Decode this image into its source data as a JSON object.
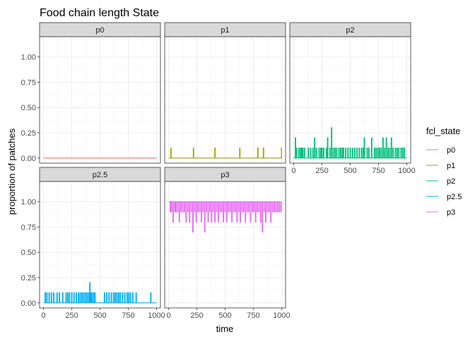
{
  "chart_data": {
    "type": "line",
    "title": "Food chain length State",
    "xlabel": "time",
    "ylabel": "proportion of patches",
    "xlim": [
      -35,
      1035
    ],
    "ylim": [
      -0.05,
      1.2
    ],
    "xticks": [
      0,
      250,
      500,
      750,
      1000
    ],
    "xtick_labels": [
      "0",
      "250",
      "500",
      "750",
      "1000"
    ],
    "yticks": [
      0,
      0.25,
      0.5,
      0.75,
      1.0
    ],
    "ytick_labels": [
      "0.00",
      "0.25",
      "0.50",
      "0.75",
      "1.00"
    ],
    "grid": true,
    "legend": {
      "title": "fcl_state",
      "position": "right",
      "entries": [
        "p0",
        "p1",
        "p2",
        "p2.5",
        "p3"
      ]
    },
    "panels": [
      {
        "name": "p0",
        "color": "#F8766D",
        "baseline": 0,
        "spikes": []
      },
      {
        "name": "p1",
        "color": "#A3A500",
        "baseline": 0,
        "spikes": [
          [
            20,
            0.1
          ],
          [
            220,
            0.1
          ],
          [
            410,
            0.1
          ],
          [
            630,
            0.1
          ],
          [
            790,
            0.1
          ],
          [
            840,
            0.1
          ],
          [
            1000,
            0.1
          ]
        ]
      },
      {
        "name": "p2",
        "color": "#00BF7D",
        "baseline": 0,
        "spikes": [
          [
            15,
            0.2
          ],
          [
            25,
            0.1
          ],
          [
            45,
            0.1
          ],
          [
            60,
            0.1
          ],
          [
            70,
            0.1
          ],
          [
            80,
            0.1
          ],
          [
            95,
            0.1
          ],
          [
            130,
            0.1
          ],
          [
            150,
            0.1
          ],
          [
            170,
            0.1
          ],
          [
            185,
            0.2
          ],
          [
            200,
            0.1
          ],
          [
            225,
            0.1
          ],
          [
            240,
            0.1
          ],
          [
            250,
            0.1
          ],
          [
            265,
            0.1
          ],
          [
            290,
            0.1
          ],
          [
            300,
            0.2
          ],
          [
            320,
            0.1
          ],
          [
            335,
            0.3
          ],
          [
            350,
            0.1
          ],
          [
            365,
            0.1
          ],
          [
            380,
            0.1
          ],
          [
            400,
            0.1
          ],
          [
            415,
            0.1
          ],
          [
            430,
            0.1
          ],
          [
            440,
            0.1
          ],
          [
            460,
            0.1
          ],
          [
            480,
            0.1
          ],
          [
            500,
            0.1
          ],
          [
            520,
            0.1
          ],
          [
            540,
            0.1
          ],
          [
            560,
            0.1
          ],
          [
            580,
            0.1
          ],
          [
            600,
            0.1
          ],
          [
            615,
            0.1
          ],
          [
            625,
            0.2
          ],
          [
            650,
            0.1
          ],
          [
            665,
            0.1
          ],
          [
            690,
            0.2
          ],
          [
            715,
            0.1
          ],
          [
            730,
            0.1
          ],
          [
            745,
            0.1
          ],
          [
            760,
            0.1
          ],
          [
            775,
            0.1
          ],
          [
            790,
            0.2
          ],
          [
            805,
            0.1
          ],
          [
            820,
            0.2
          ],
          [
            835,
            0.1
          ],
          [
            850,
            0.1
          ],
          [
            865,
            0.2
          ],
          [
            880,
            0.1
          ],
          [
            900,
            0.1
          ],
          [
            915,
            0.1
          ],
          [
            930,
            0.1
          ],
          [
            950,
            0.1
          ],
          [
            965,
            0.1
          ],
          [
            980,
            0.1
          ]
        ]
      },
      {
        "name": "p2.5",
        "color": "#00B0F6",
        "baseline": 0,
        "spikes": [
          [
            15,
            0.1
          ],
          [
            30,
            0.1
          ],
          [
            50,
            0.1
          ],
          [
            70,
            0.1
          ],
          [
            90,
            0.1
          ],
          [
            120,
            0.1
          ],
          [
            140,
            0.1
          ],
          [
            170,
            0.1
          ],
          [
            200,
            0.1
          ],
          [
            215,
            0.1
          ],
          [
            230,
            0.1
          ],
          [
            250,
            0.1
          ],
          [
            270,
            0.1
          ],
          [
            290,
            0.1
          ],
          [
            310,
            0.1
          ],
          [
            325,
            0.1
          ],
          [
            340,
            0.1
          ],
          [
            355,
            0.1
          ],
          [
            370,
            0.1
          ],
          [
            385,
            0.1
          ],
          [
            400,
            0.1
          ],
          [
            410,
            0.2
          ],
          [
            420,
            0.1
          ],
          [
            430,
            0.1
          ],
          [
            445,
            0.1
          ],
          [
            455,
            0.1
          ],
          [
            540,
            0.1
          ],
          [
            560,
            0.1
          ],
          [
            580,
            0.1
          ],
          [
            600,
            0.1
          ],
          [
            620,
            0.1
          ],
          [
            635,
            0.1
          ],
          [
            650,
            0.1
          ],
          [
            665,
            0.1
          ],
          [
            680,
            0.1
          ],
          [
            700,
            0.1
          ],
          [
            720,
            0.1
          ],
          [
            740,
            0.1
          ],
          [
            755,
            0.1
          ],
          [
            770,
            0.1
          ],
          [
            790,
            0.1
          ],
          [
            820,
            0.1
          ],
          [
            950,
            0.1
          ]
        ]
      },
      {
        "name": "p3",
        "color": "#E76BF3",
        "baseline": 1.0,
        "spikes": [
          [
            15,
            0.9
          ],
          [
            25,
            0.9
          ],
          [
            40,
            0.8
          ],
          [
            55,
            0.9
          ],
          [
            65,
            0.9
          ],
          [
            80,
            0.9
          ],
          [
            95,
            0.8
          ],
          [
            110,
            0.9
          ],
          [
            125,
            0.9
          ],
          [
            140,
            0.9
          ],
          [
            155,
            0.8
          ],
          [
            170,
            0.9
          ],
          [
            185,
            0.8
          ],
          [
            200,
            0.9
          ],
          [
            215,
            0.7
          ],
          [
            230,
            0.9
          ],
          [
            245,
            0.8
          ],
          [
            260,
            0.9
          ],
          [
            275,
            0.9
          ],
          [
            290,
            0.8
          ],
          [
            305,
            0.9
          ],
          [
            320,
            0.7
          ],
          [
            335,
            0.9
          ],
          [
            350,
            0.8
          ],
          [
            365,
            0.9
          ],
          [
            380,
            0.8
          ],
          [
            395,
            0.9
          ],
          [
            410,
            0.8
          ],
          [
            425,
            0.9
          ],
          [
            440,
            0.8
          ],
          [
            455,
            0.9
          ],
          [
            470,
            0.9
          ],
          [
            485,
            0.8
          ],
          [
            500,
            0.9
          ],
          [
            515,
            0.8
          ],
          [
            530,
            0.9
          ],
          [
            545,
            0.9
          ],
          [
            560,
            0.8
          ],
          [
            575,
            0.9
          ],
          [
            590,
            0.9
          ],
          [
            605,
            0.8
          ],
          [
            620,
            0.9
          ],
          [
            635,
            0.8
          ],
          [
            650,
            0.9
          ],
          [
            665,
            0.9
          ],
          [
            680,
            0.8
          ],
          [
            695,
            0.9
          ],
          [
            710,
            0.9
          ],
          [
            725,
            0.8
          ],
          [
            740,
            0.9
          ],
          [
            755,
            0.9
          ],
          [
            770,
            0.8
          ],
          [
            785,
            0.9
          ],
          [
            800,
            0.9
          ],
          [
            815,
            0.8
          ],
          [
            830,
            0.7
          ],
          [
            845,
            0.9
          ],
          [
            860,
            0.8
          ],
          [
            875,
            0.9
          ],
          [
            890,
            0.9
          ],
          [
            905,
            0.8
          ],
          [
            920,
            0.9
          ],
          [
            935,
            0.9
          ],
          [
            950,
            0.9
          ],
          [
            965,
            0.9
          ],
          [
            980,
            0.9
          ],
          [
            995,
            0.9
          ]
        ]
      }
    ]
  }
}
